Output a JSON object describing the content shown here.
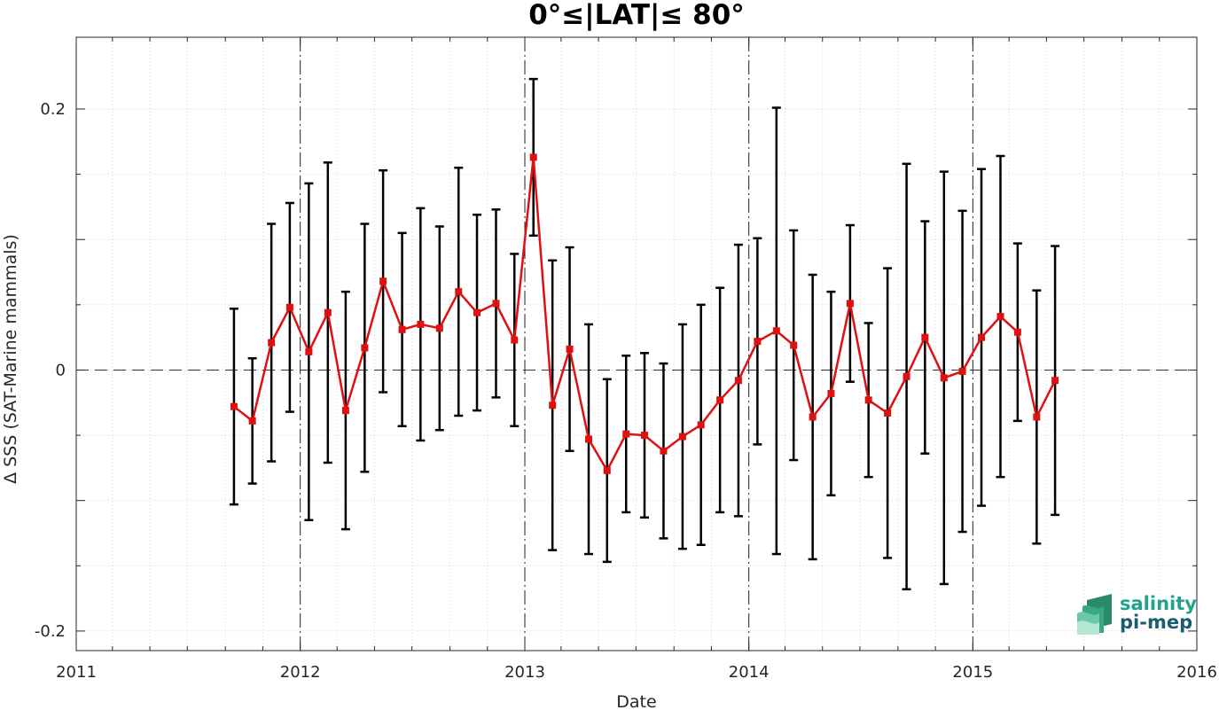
{
  "chart_data": {
    "type": "line",
    "title": "0°≤|LAT|≤ 80°",
    "xlabel": "Date",
    "ylabel": "Δ SSS (SAT-Marine mammals)",
    "xlim": [
      "2011-01-01",
      "2016-01-01"
    ],
    "ylim": [
      -0.215,
      0.255
    ],
    "x_ticks": [
      "2011",
      "2012",
      "2013",
      "2014",
      "2015",
      "2016"
    ],
    "y_ticks": [
      {
        "value": -0.2,
        "label": "-0.2"
      },
      {
        "value": 0,
        "label": "0"
      },
      {
        "value": 0.2,
        "label": "0.2"
      }
    ],
    "grid": true,
    "series": [
      {
        "color": "#e01010",
        "error_bar_color": "#000000",
        "x": [
          "2011-09-15",
          "2011-10-15",
          "2011-11-15",
          "2011-12-15",
          "2012-01-15",
          "2012-02-15",
          "2012-03-15",
          "2012-04-15",
          "2012-05-15",
          "2012-06-15",
          "2012-07-15",
          "2012-08-15",
          "2012-09-15",
          "2012-10-15",
          "2012-11-15",
          "2012-12-15",
          "2013-01-15",
          "2013-02-15",
          "2013-03-15",
          "2013-04-15",
          "2013-05-15",
          "2013-06-15",
          "2013-07-15",
          "2013-08-15",
          "2013-09-15",
          "2013-10-15",
          "2013-11-15",
          "2013-12-15",
          "2014-01-15",
          "2014-02-15",
          "2014-03-15",
          "2014-04-15",
          "2014-05-15",
          "2014-06-15",
          "2014-07-15",
          "2014-08-15",
          "2014-09-15",
          "2014-10-15",
          "2014-11-15",
          "2014-12-15",
          "2015-01-15",
          "2015-02-15",
          "2015-03-15",
          "2015-04-15",
          "2015-05-15"
        ],
        "y": [
          -0.028,
          -0.039,
          0.021,
          0.048,
          0.014,
          0.044,
          -0.031,
          0.017,
          0.068,
          0.031,
          0.035,
          0.032,
          0.06,
          0.044,
          0.051,
          0.023,
          0.163,
          -0.027,
          0.016,
          -0.053,
          -0.077,
          -0.049,
          -0.05,
          -0.062,
          -0.051,
          -0.042,
          -0.023,
          -0.008,
          0.022,
          0.03,
          0.019,
          -0.036,
          -0.018,
          0.051,
          -0.023,
          -0.033,
          -0.005,
          0.025,
          -0.006,
          -0.001,
          0.025,
          0.041,
          0.029,
          -0.036,
          -0.008
        ],
        "yerr": [
          0.075,
          0.048,
          0.091,
          0.08,
          0.129,
          0.115,
          0.091,
          0.095,
          0.085,
          0.074,
          0.089,
          0.078,
          0.095,
          0.075,
          0.072,
          0.066,
          0.06,
          0.111,
          0.078,
          0.088,
          0.07,
          0.06,
          0.063,
          0.067,
          0.086,
          0.092,
          0.086,
          0.104,
          0.079,
          0.171,
          0.088,
          0.109,
          0.078,
          0.06,
          0.059,
          0.111,
          0.163,
          0.089,
          0.158,
          0.123,
          0.129,
          0.123,
          0.068,
          0.097,
          0.103
        ]
      }
    ]
  },
  "logo": {
    "line1": "salinity",
    "line2": "pi-mep"
  }
}
